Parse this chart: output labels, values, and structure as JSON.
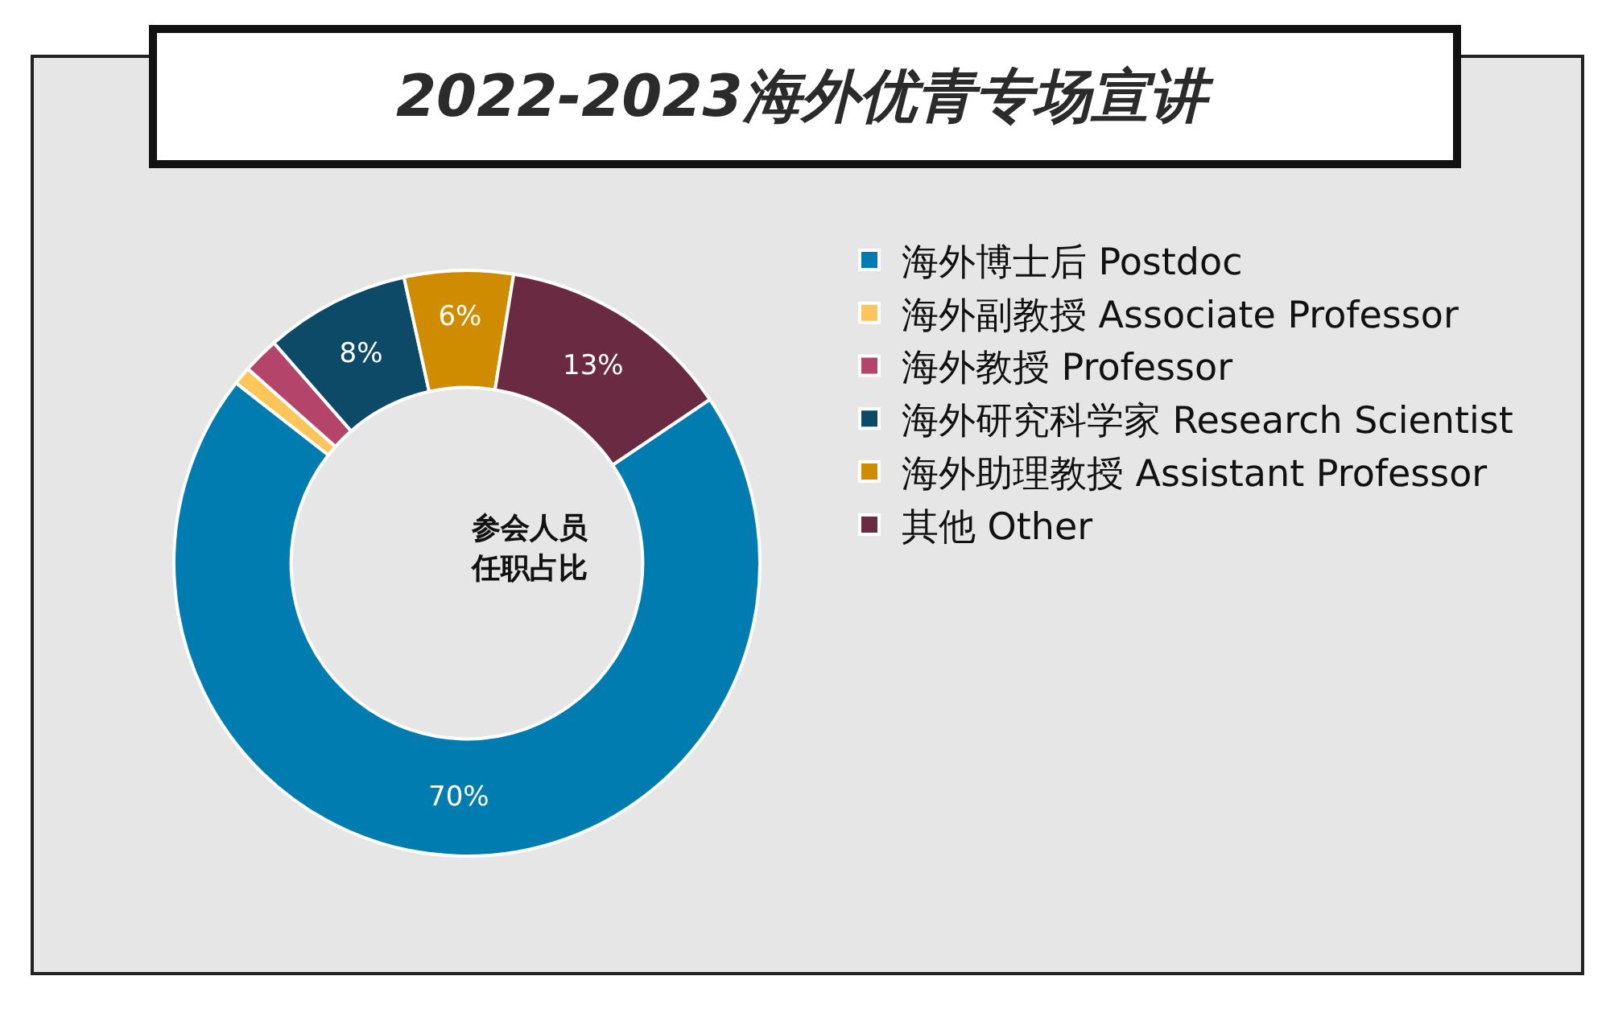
{
  "chart_data": {
    "type": "donut",
    "title": "2022-2023海外优青专场宣讲",
    "categories": [
      "海外博士后 Postdoc",
      "海外副教授 Associate Professor",
      "海外教授 Professor",
      "海外研究科学家 Research Scientist",
      "海外助理教授 Assistant Professor",
      "其他 Other"
    ],
    "values": [
      70,
      1,
      2,
      8,
      6,
      13
    ],
    "value_labels": [
      "70%",
      null,
      null,
      "8%",
      "6%",
      "13%"
    ],
    "colors": [
      "#007cb0",
      "#fcc65a",
      "#b5446b",
      "#0c4a68",
      "#d08c00",
      "#6a2a42"
    ],
    "annotations": [
      "参会人员",
      "任职占比"
    ],
    "legend": "right"
  }
}
